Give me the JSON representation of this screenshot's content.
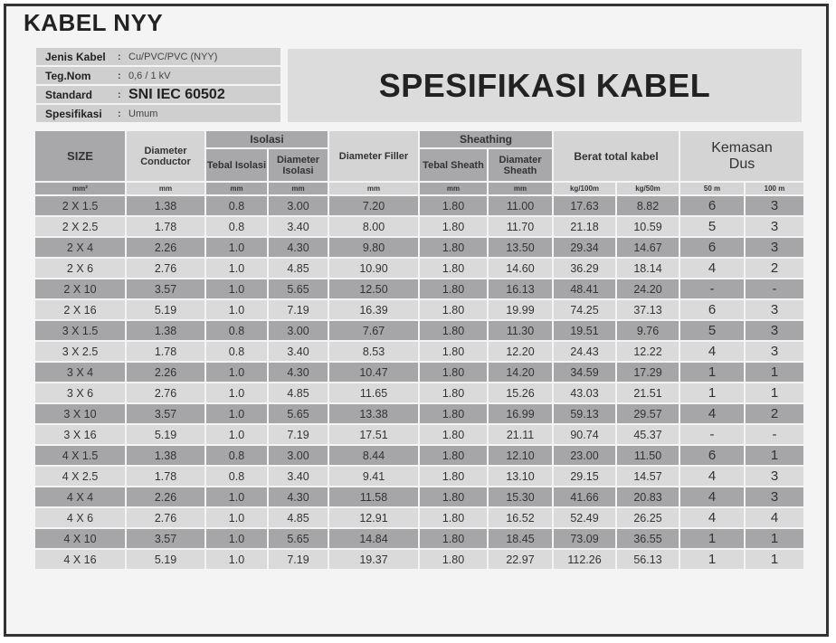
{
  "title": "KABEL NYY",
  "banner": "SPESIFIKASI KABEL",
  "info": [
    {
      "label": "Jenis Kabel",
      "value": "Cu/PVC/PVC (NYY)"
    },
    {
      "label": "Teg.Nom",
      "value": "0,6 / 1 kV"
    },
    {
      "label": "Standard",
      "value": "SNI IEC 60502"
    },
    {
      "label": "Spesifikasi",
      "value": "Umum"
    }
  ],
  "headers": {
    "size": "SIZE",
    "diam_conductor": "Diameter Conductor",
    "isolasi": "Isolasi",
    "tebal_isolasi": "Tebal Isolasi",
    "diam_isolasi": "Diameter Isolasi",
    "diam_filler": "Diameter Filler",
    "sheathing": "Sheathing",
    "tebal_sheath": "Tebal Sheath",
    "diam_sheath": "Diamater Sheath",
    "berat": "Berat total kabel",
    "kemasan": "Kemasan Dus"
  },
  "units": [
    "mm²",
    "mm",
    "mm",
    "mm",
    "mm",
    "mm",
    "mm",
    "kg/100m",
    "kg/50m",
    "50 m",
    "100 m"
  ],
  "rows": [
    [
      "2 X 1.5",
      "1.38",
      "0.8",
      "3.00",
      "7.20",
      "1.80",
      "11.00",
      "17.63",
      "8.82",
      "6",
      "3"
    ],
    [
      "2 X 2.5",
      "1.78",
      "0.8",
      "3.40",
      "8.00",
      "1.80",
      "11.70",
      "21.18",
      "10.59",
      "5",
      "3"
    ],
    [
      "2 X 4",
      "2.26",
      "1.0",
      "4.30",
      "9.80",
      "1.80",
      "13.50",
      "29.34",
      "14.67",
      "6",
      "3"
    ],
    [
      "2 X 6",
      "2.76",
      "1.0",
      "4.85",
      "10.90",
      "1.80",
      "14.60",
      "36.29",
      "18.14",
      "4",
      "2"
    ],
    [
      "2 X 10",
      "3.57",
      "1.0",
      "5.65",
      "12.50",
      "1.80",
      "16.13",
      "48.41",
      "24.20",
      "-",
      "-"
    ],
    [
      "2 X 16",
      "5.19",
      "1.0",
      "7.19",
      "16.39",
      "1.80",
      "19.99",
      "74.25",
      "37.13",
      "6",
      "3"
    ],
    [
      "3 X 1.5",
      "1.38",
      "0.8",
      "3.00",
      "7.67",
      "1.80",
      "11.30",
      "19.51",
      "9.76",
      "5",
      "3"
    ],
    [
      "3 X 2.5",
      "1.78",
      "0.8",
      "3.40",
      "8.53",
      "1.80",
      "12.20",
      "24.43",
      "12.22",
      "4",
      "3"
    ],
    [
      "3 X 4",
      "2.26",
      "1.0",
      "4.30",
      "10.47",
      "1.80",
      "14.20",
      "34.59",
      "17.29",
      "1",
      "1"
    ],
    [
      "3 X 6",
      "2.76",
      "1.0",
      "4.85",
      "11.65",
      "1.80",
      "15.26",
      "43.03",
      "21.51",
      "1",
      "1"
    ],
    [
      "3 X  10",
      "3.57",
      "1.0",
      "5.65",
      "13.38",
      "1.80",
      "16.99",
      "59.13",
      "29.57",
      "4",
      "2"
    ],
    [
      "3 X 16",
      "5.19",
      "1.0",
      "7.19",
      "17.51",
      "1.80",
      "21.11",
      "90.74",
      "45.37",
      "-",
      "-"
    ],
    [
      "4 X 1.5",
      "1.38",
      "0.8",
      "3.00",
      "8.44",
      "1.80",
      "12.10",
      "23.00",
      "11.50",
      "6",
      "1"
    ],
    [
      "4 X 2.5",
      "1.78",
      "0.8",
      "3.40",
      "9.41",
      "1.80",
      "13.10",
      "29.15",
      "14.57",
      "4",
      "3"
    ],
    [
      "4 X 4",
      "2.26",
      "1.0",
      "4.30",
      "11.58",
      "1.80",
      "15.30",
      "41.66",
      "20.83",
      "4",
      "3"
    ],
    [
      "4 X 6",
      "2.76",
      "1.0",
      "4.85",
      "12.91",
      "1.80",
      "16.52",
      "52.49",
      "26.25",
      "4",
      "4"
    ],
    [
      "4 X 10",
      "3.57",
      "1.0",
      "5.65",
      "14.84",
      "1.80",
      "18.45",
      "73.09",
      "36.55",
      "1",
      "1"
    ],
    [
      "4 X 16",
      "5.19",
      "1.0",
      "7.19",
      "19.37",
      "1.80",
      "22.97",
      "112.26",
      "56.13",
      "1",
      "1"
    ]
  ]
}
